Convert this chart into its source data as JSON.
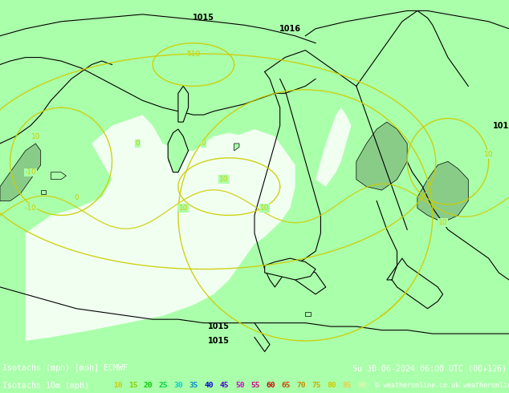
{
  "title_left": "Isotachs (mph) [mph] ECMWF",
  "title_right": "Su 30-06-2024 06:00 UTC (00+126)",
  "subtitle_left": "Isotachs 10m (mph)",
  "copyright": "© weatheronline.co.uk",
  "legend_values": [
    "10",
    "15",
    "20",
    "25",
    "30",
    "35",
    "40",
    "45",
    "50",
    "55",
    "60",
    "65",
    "70",
    "75",
    "80",
    "85",
    "90"
  ],
  "legend_colors": [
    "#c8c800",
    "#00c800",
    "#00c800",
    "#00c864",
    "#00c8c8",
    "#0064c8",
    "#0000c8",
    "#6400c8",
    "#c800c8",
    "#c80064",
    "#c80000",
    "#c83200",
    "#c86400",
    "#c89600",
    "#c8c800",
    "#c8c864",
    "#c8c896"
  ],
  "map_bg": "#aaffaa",
  "sea_color": "#e8ffe8",
  "land_color": "#aaffaa",
  "green_fill": "#88cc88",
  "contour_yellow": "#cccc00",
  "text_color_black": "#000000",
  "bottom_bg": "#000000",
  "bottom_text": "#ffffff",
  "figsize": [
    6.34,
    4.9
  ],
  "dpi": 100
}
